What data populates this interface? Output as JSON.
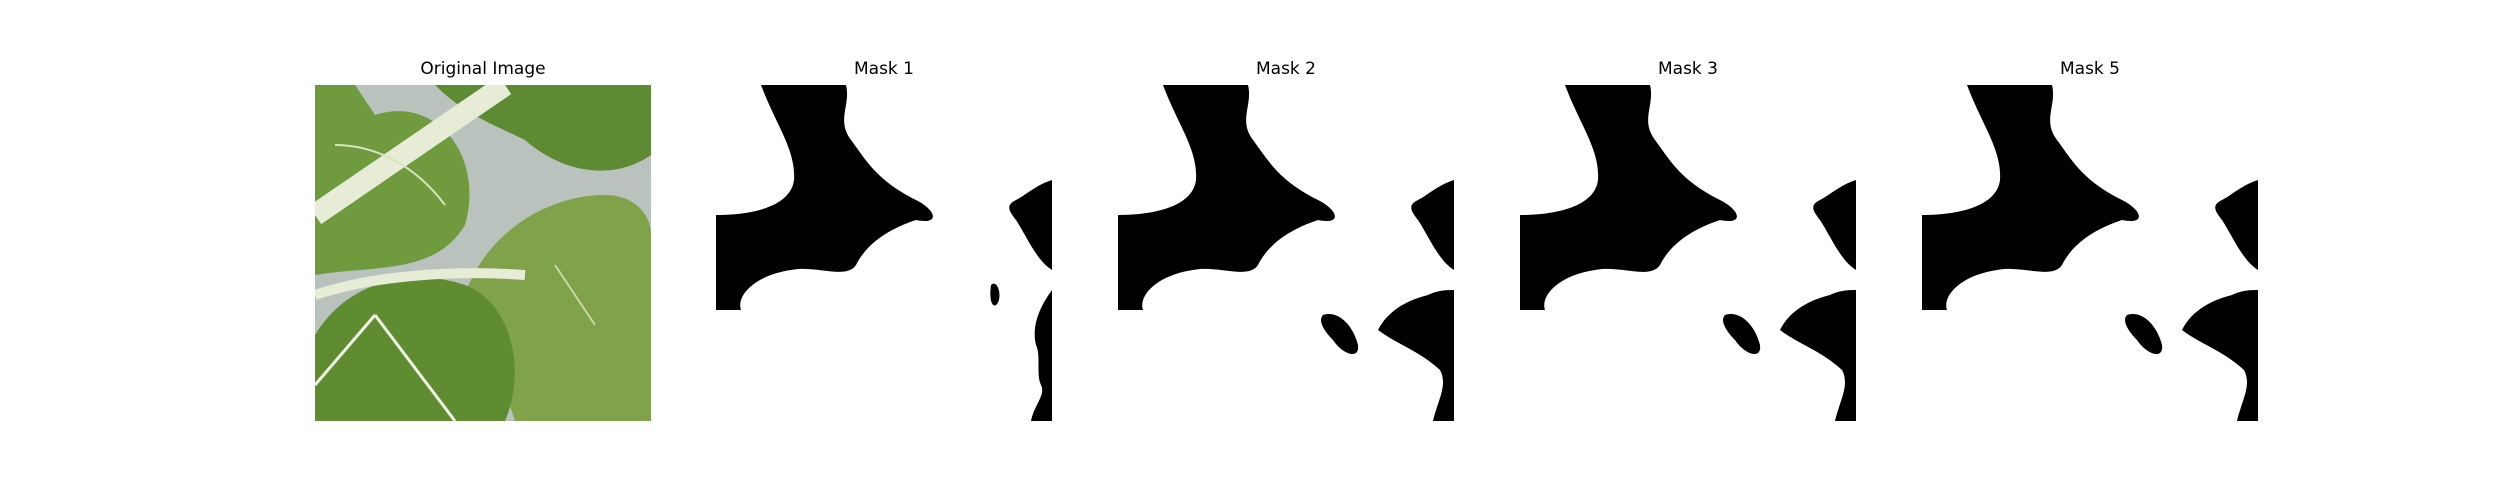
{
  "panels": [
    {
      "title": "Original Image",
      "kind": "photo",
      "subject": "leaf-photo"
    },
    {
      "title": "Mask 1",
      "kind": "mask",
      "subject": "binary-mask"
    },
    {
      "title": "Mask 2",
      "kind": "mask",
      "subject": "binary-mask"
    },
    {
      "title": "Mask 3",
      "kind": "mask",
      "subject": "binary-mask"
    },
    {
      "title": "Mask 5",
      "kind": "mask",
      "subject": "binary-mask"
    }
  ],
  "colors": {
    "background": "#ffffff",
    "mask_fg": "#000000",
    "leaf_dark": "#4f7a2c",
    "leaf_mid": "#6f9a3e",
    "leaf_light": "#8fb05a",
    "stem": "#e6ecd6",
    "gap": "#b9c2bd"
  }
}
